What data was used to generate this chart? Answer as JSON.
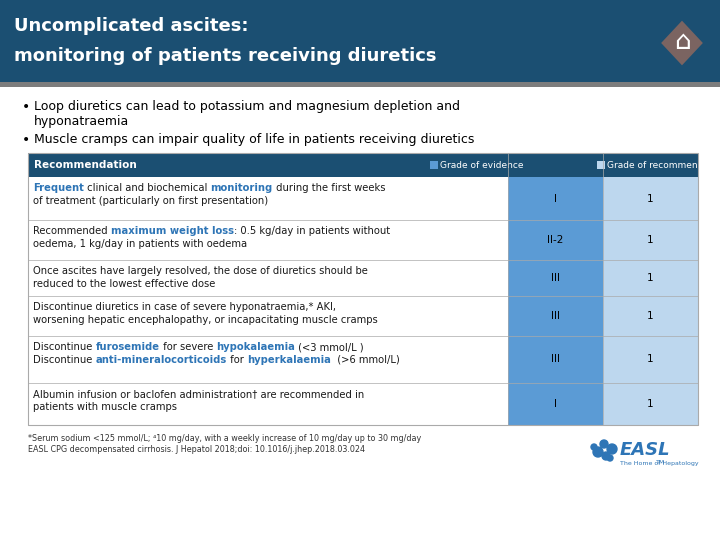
{
  "title_line1": "Uncomplicated ascites:",
  "title_line2": "monitoring of patients receiving diuretics",
  "title_bg": "#1b4f72",
  "title_stripe_color": "#7d7d7d",
  "title_text_color": "#ffffff",
  "bullet1_a": "Loop diuretics can lead to potassium and magnesium depletion and",
  "bullet1_b": "hyponatraemia",
  "bullet2": "Muscle cramps can impair quality of life in patients receiving diuretics",
  "bg_color": "#ffffff",
  "table_header_bg": "#1b4f72",
  "table_header_text": "#ffffff",
  "col_evidence_bg": "#5b9bd5",
  "col_rec_bg": "#bdd7ee",
  "table_border": "#aaaaaa",
  "header_col1": "Recommendation",
  "header_col2": "Grade of evidence",
  "header_col3": "Grade of recommendation",
  "accent_color": "#2e75b6",
  "row_texts": [
    [
      [
        "Frequent",
        true
      ],
      [
        " clinical and biochemical ",
        false
      ],
      [
        "monitoring",
        true
      ],
      [
        " during the first weeks\nof treatment (particularly on first presentation)",
        false
      ]
    ],
    [
      [
        "Recommended ",
        false
      ],
      [
        "maximum weight loss",
        true
      ],
      [
        ": 0.5 kg/day in patients without\noedema, 1 kg/day in patients with oedema",
        false
      ]
    ],
    [
      [
        "Once ascites have largely resolved, the dose of diuretics should be\nreduced to the lowest effective dose",
        false
      ]
    ],
    [
      [
        "Discontinue diuretics in case of severe hyponatraemia,* AKI,\nworsening hepatic encephalopathy, or incapacitating muscle cramps",
        false
      ]
    ],
    [
      [
        "Discontinue ",
        false
      ],
      [
        "furosemide",
        true
      ],
      [
        " for severe ",
        false
      ],
      [
        "hypokalaemia",
        true
      ],
      [
        " (<3 mmol/L )\nDiscontinue ",
        false
      ],
      [
        "anti-mineralocorticoids",
        true
      ],
      [
        " for ",
        false
      ],
      [
        "hyperkalaemia",
        true
      ],
      [
        "  (>6 mmol/L)",
        false
      ]
    ],
    [
      [
        "Albumin infusion or baclofen administration† are recommended in\npatients with muscle cramps",
        false
      ]
    ]
  ],
  "row_evidence": [
    "I",
    "II-2",
    "III",
    "III",
    "III",
    "I"
  ],
  "row_recommendation": [
    "1",
    "1",
    "1",
    "1",
    "1",
    "1"
  ],
  "footnote1": "*Serum sodium <125 mmol/L; ⁴10 mg/day, with a weekly increase of 10 mg/day up to 30 mg/day",
  "footnote2": "EASL CPG decompensated cirrhosis. J Hepatol 2018;doi: 10.1016/j.jhep.2018.03.024",
  "diamond_color": "#7b6461",
  "easl_blue": "#2e75b6"
}
